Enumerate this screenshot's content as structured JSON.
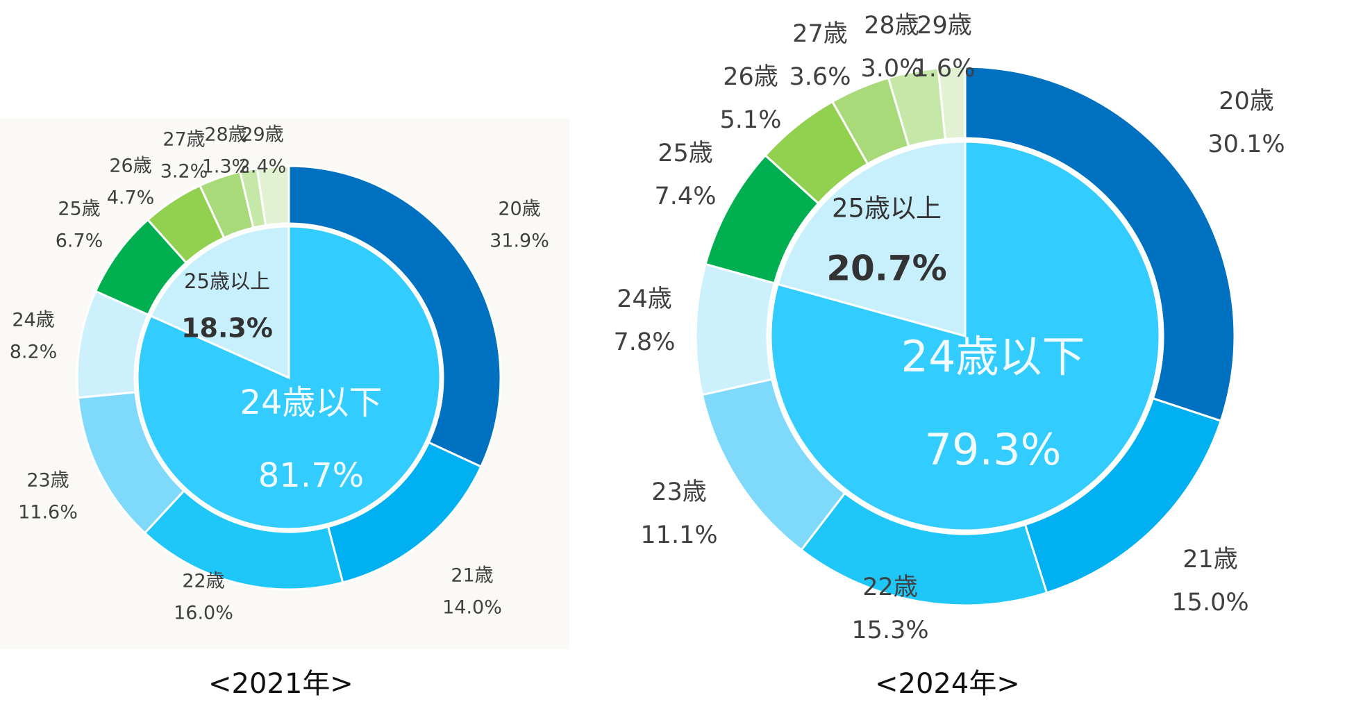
{
  "chart_data": [
    {
      "type": "pie",
      "caption": "<2021年>",
      "outer_ring": {
        "categories": [
          "20歳",
          "21歳",
          "22歳",
          "23歳",
          "24歳",
          "25歳",
          "26歳",
          "27歳",
          "28歳",
          "29歳"
        ],
        "values_label": [
          "31.9%",
          "14.0%",
          "16.0%",
          "11.6%",
          "8.2%",
          "6.7%",
          "4.7%",
          "3.2%",
          "1.3%",
          "2.4%"
        ],
        "values": [
          31.9,
          14.0,
          16.0,
          11.6,
          8.2,
          6.7,
          4.7,
          3.2,
          1.3,
          2.4
        ]
      },
      "inner_ring": {
        "categories": [
          "24歳以下",
          "25歳以上"
        ],
        "values_label": [
          "81.7%",
          "18.3%"
        ],
        "values": [
          81.7,
          18.3
        ]
      }
    },
    {
      "type": "pie",
      "caption": "<2024年>",
      "outer_ring": {
        "categories": [
          "20歳",
          "21歳",
          "22歳",
          "23歳",
          "24歳",
          "25歳",
          "26歳",
          "27歳",
          "28歳",
          "29歳"
        ],
        "values_label": [
          "30.1%",
          "15.0%",
          "15.3%",
          "11.1%",
          "7.8%",
          "7.4%",
          "5.1%",
          "3.6%",
          "3.0%",
          "1.6%"
        ],
        "values": [
          30.1,
          15.0,
          15.3,
          11.1,
          7.8,
          7.4,
          5.1,
          3.6,
          3.0,
          1.6
        ]
      },
      "inner_ring": {
        "categories": [
          "24歳以下",
          "25歳以上"
        ],
        "values_label": [
          "79.3%",
          "20.7%"
        ],
        "values": [
          79.3,
          20.7
        ]
      }
    }
  ],
  "colors": {
    "outer": [
      "#0070c0",
      "#00b0f0",
      "#1fc6f8",
      "#7fd9fb",
      "#cdf0fd",
      "#00b050",
      "#92d050",
      "#a9da7a",
      "#c5e7a7",
      "#e2f1d2"
    ],
    "inner": [
      "#33ccff",
      "#c8effc"
    ],
    "ring_stroke": "#ffffff",
    "label_text": "#404040",
    "inner_major_text": "#f2fbff",
    "inner_minor_text": "#333333"
  }
}
